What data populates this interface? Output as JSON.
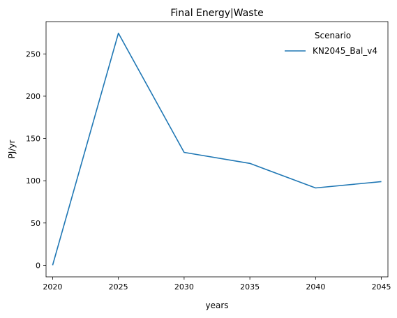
{
  "chart_data": {
    "type": "line",
    "title": "Final Energy|Waste",
    "xlabel": "years",
    "ylabel": "PJ/yr",
    "x": [
      2020,
      2025,
      2030,
      2035,
      2040,
      2045
    ],
    "series": [
      {
        "name": "KN2045_Bal_v4",
        "values": [
          0,
          274.5,
          133.5,
          120.5,
          91.5,
          99
        ],
        "color": "#1f77b4"
      }
    ],
    "xticks": [
      2020,
      2025,
      2030,
      2035,
      2040,
      2045
    ],
    "yticks": [
      0,
      50,
      100,
      150,
      200,
      250
    ],
    "xlim": [
      2019.5,
      2045.5
    ],
    "ylim": [
      -13.7,
      288.2
    ],
    "grid": false,
    "legend": {
      "title": "Scenario",
      "placement": "top-right"
    }
  }
}
